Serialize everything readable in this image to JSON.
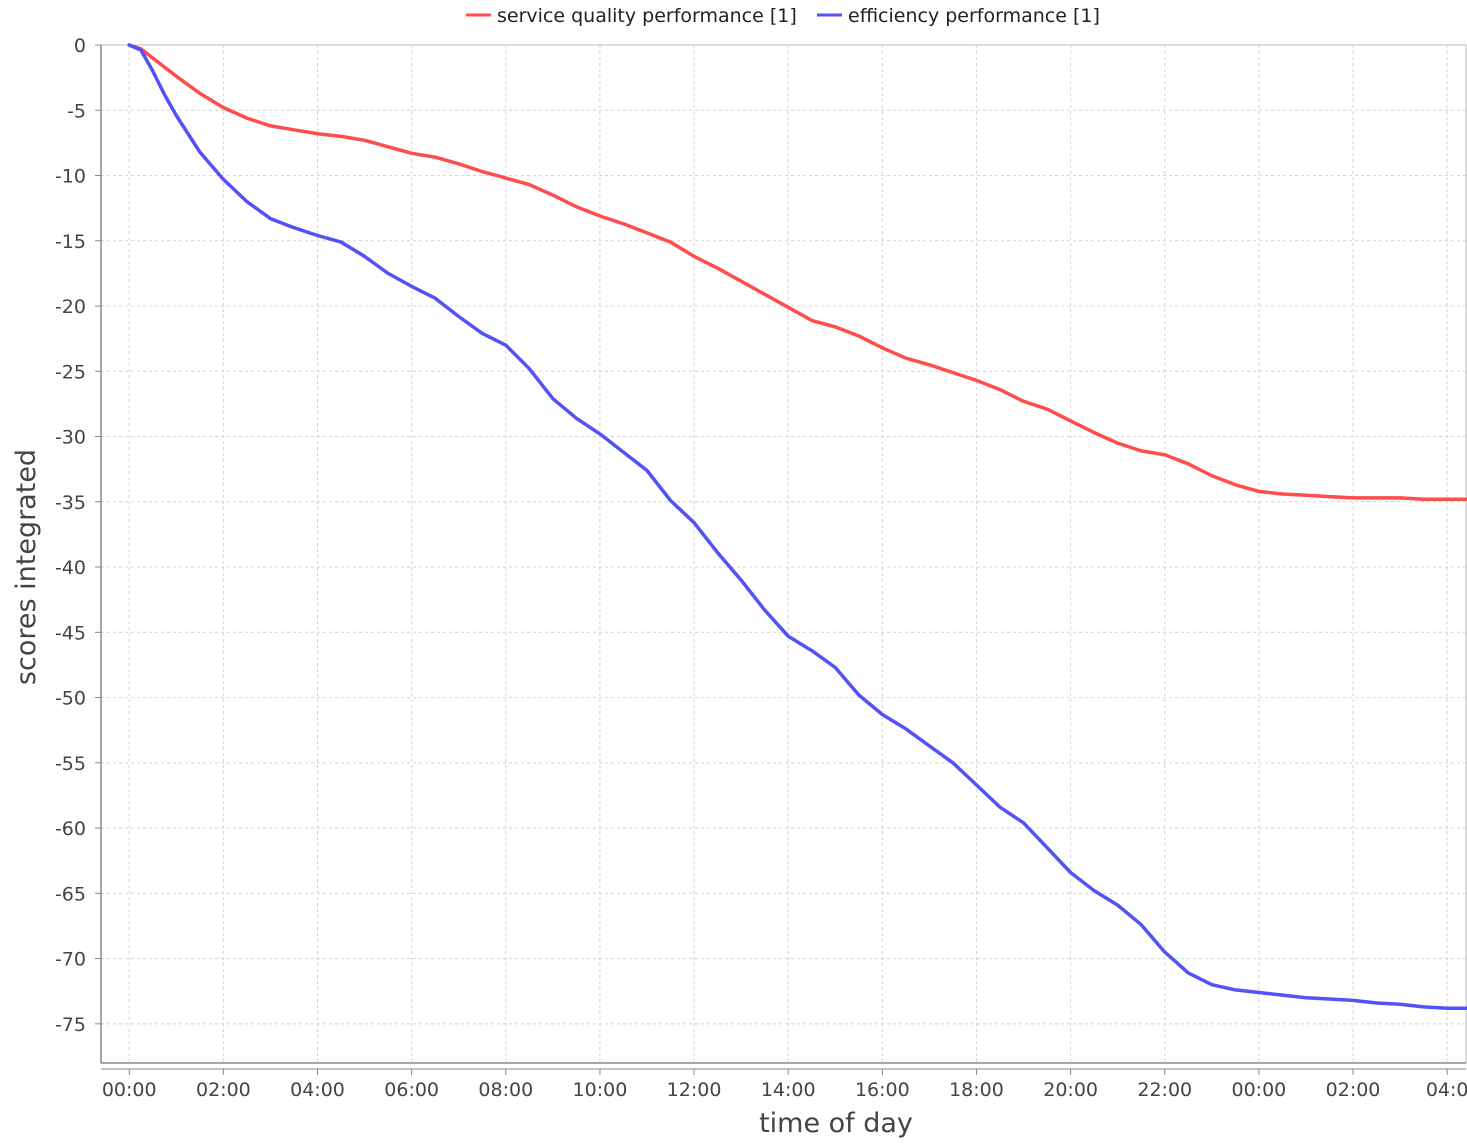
{
  "chart_data": {
    "type": "line",
    "xlabel": "time of day",
    "ylabel": "scores integrated",
    "x_unit": "hours",
    "xlim": [
      -0.6,
      28.4
    ],
    "ylim": [
      -78,
      0
    ],
    "y_ticks": [
      0,
      -5,
      -10,
      -15,
      -20,
      -25,
      -30,
      -35,
      -40,
      -45,
      -50,
      -55,
      -60,
      -65,
      -70,
      -75
    ],
    "x_ticks": [
      0,
      2,
      4,
      6,
      8,
      10,
      12,
      14,
      16,
      18,
      20,
      22,
      24,
      26,
      28
    ],
    "x_tick_labels": [
      "00:00",
      "02:00",
      "04:00",
      "06:00",
      "08:00",
      "10:00",
      "12:00",
      "14:00",
      "16:00",
      "18:00",
      "20:00",
      "22:00",
      "00:00",
      "02:00",
      "04:0"
    ],
    "grid": true,
    "legend_position": "top-center",
    "series": [
      {
        "name": "service quality performance [1]",
        "color": "#ff4d4d",
        "x": [
          0,
          0.25,
          0.5,
          1,
          1.5,
          2,
          2.5,
          3,
          3.5,
          4,
          4.5,
          5,
          5.5,
          6,
          6.5,
          7,
          7.5,
          8,
          8.5,
          9,
          9.5,
          10,
          10.5,
          11,
          11.5,
          12,
          12.5,
          13,
          13.5,
          14,
          14.5,
          15,
          15.5,
          16,
          16.5,
          17,
          17.5,
          18,
          18.5,
          19,
          19.5,
          20,
          20.5,
          21,
          21.5,
          22,
          22.5,
          23,
          23.5,
          24,
          24.5,
          25,
          25.5,
          26,
          26.5,
          27,
          27.5,
          28,
          28.4
        ],
        "y": [
          0,
          -0.3,
          -1.0,
          -2.4,
          -3.7,
          -4.8,
          -5.6,
          -6.2,
          -6.5,
          -6.8,
          -7.0,
          -7.3,
          -7.8,
          -8.3,
          -8.6,
          -9.1,
          -9.7,
          -10.2,
          -10.7,
          -11.5,
          -12.4,
          -13.1,
          -13.7,
          -14.4,
          -15.1,
          -16.2,
          -17.1,
          -18.1,
          -19.1,
          -20.1,
          -21.1,
          -21.6,
          -22.3,
          -23.2,
          -24.0,
          -24.5,
          -25.1,
          -25.7,
          -26.4,
          -27.3,
          -27.9,
          -28.8,
          -29.7,
          -30.5,
          -31.1,
          -31.4,
          -32.1,
          -33.0,
          -33.7,
          -34.2,
          -34.4,
          -34.5,
          -34.6,
          -34.7,
          -34.7,
          -34.7,
          -34.8,
          -34.8,
          -34.8
        ]
      },
      {
        "name": "efficiency performance [1]",
        "color": "#5252f5",
        "x": [
          0,
          0.25,
          0.5,
          0.75,
          1,
          1.5,
          2,
          2.5,
          3,
          3.5,
          4,
          4.5,
          5,
          5.5,
          6,
          6.5,
          7,
          7.5,
          8,
          8.5,
          9,
          9.5,
          10,
          10.5,
          11,
          11.5,
          12,
          12.5,
          13,
          13.5,
          14,
          14.5,
          15,
          15.5,
          16,
          16.5,
          17,
          17.5,
          18,
          18.5,
          19,
          19.5,
          20,
          20.5,
          21,
          21.5,
          22,
          22.5,
          23,
          23.5,
          24,
          24.5,
          25,
          25.5,
          26,
          26.5,
          27,
          27.5,
          28,
          28.4
        ],
        "y": [
          0,
          -0.4,
          -2.0,
          -3.8,
          -5.4,
          -8.2,
          -10.3,
          -12.0,
          -13.3,
          -14.0,
          -14.6,
          -15.1,
          -16.2,
          -17.5,
          -18.5,
          -19.4,
          -20.8,
          -22.1,
          -23.0,
          -24.8,
          -27.1,
          -28.6,
          -29.8,
          -31.2,
          -32.6,
          -34.9,
          -36.6,
          -38.9,
          -41.0,
          -43.3,
          -45.3,
          -46.4,
          -47.7,
          -49.8,
          -51.3,
          -52.4,
          -53.7,
          -55.0,
          -56.7,
          -58.4,
          -59.6,
          -61.5,
          -63.4,
          -64.8,
          -65.9,
          -67.4,
          -69.5,
          -71.1,
          -72.0,
          -72.4,
          -72.6,
          -72.8,
          -73.0,
          -73.1,
          -73.2,
          -73.4,
          -73.5,
          -73.7,
          -73.8,
          -73.8
        ]
      }
    ]
  }
}
